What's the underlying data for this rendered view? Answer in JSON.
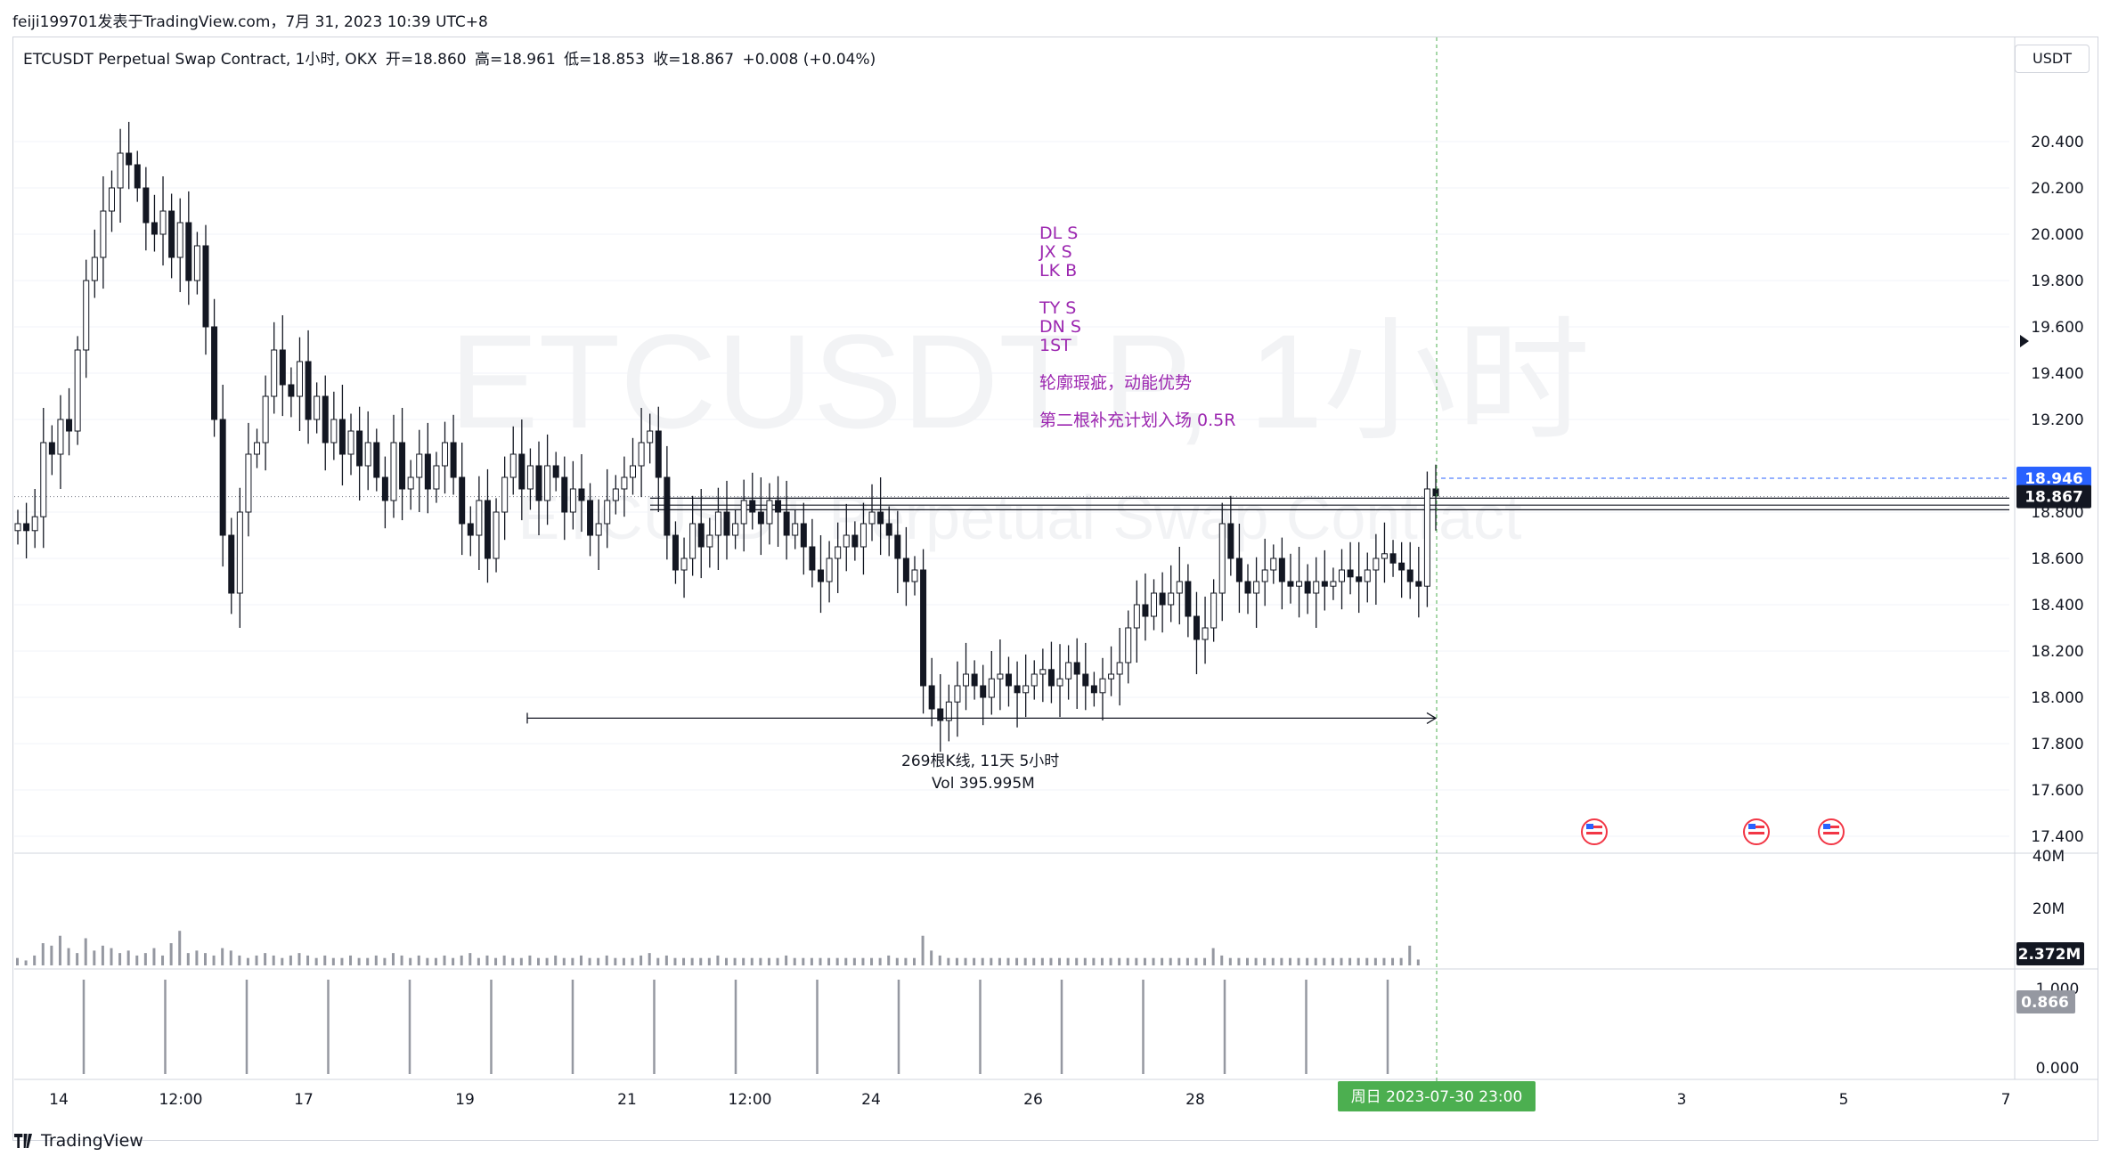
{
  "header": {
    "source_line": "feiji199701发表于TradingView.com，7月 31, 2023 10:39 UTC+8"
  },
  "legend": {
    "symbol": "ETCUSDT Perpetual Swap Contract, 1小时, OKX",
    "open": "开=18.860",
    "high": "高=18.961",
    "low": "低=18.853",
    "close": "收=18.867",
    "change": "+0.008 (+0.04%)"
  },
  "currency": "USDT",
  "watermark": {
    "big": "ETCUSDT.P, 1小时",
    "small": "ETCUSDT Perpetual Swap Contract"
  },
  "notes": [
    "DL S",
    "JX S",
    "LK B",
    "TY S",
    "DN S",
    "1ST",
    "轮廓瑕疵，动能优势",
    "第二根补充计划入场 0.5R"
  ],
  "measure": {
    "bars": "269根K线, 11天 5小时",
    "vol": "Vol 395.995M"
  },
  "crosshair_label": "周日 2023-07-30   23:00",
  "footer": {
    "brand": "TradingView"
  },
  "colors": {
    "up": "#131722",
    "down": "#131722",
    "note": "#9c27b0",
    "crosshair": "#4caf50",
    "last_price": "#131722",
    "alert_line": "#2962ff"
  },
  "chart_data": {
    "type": "candlestick",
    "price_axis": {
      "ticks": [
        20.4,
        20.2,
        20.0,
        19.8,
        19.6,
        19.4,
        19.2,
        18.8,
        18.6,
        18.4,
        18.2,
        18.0,
        17.8,
        17.6,
        17.4
      ],
      "tick_labels": [
        "20.400",
        "20.200",
        "20.000",
        "19.800",
        "19.600",
        "19.400",
        "19.200",
        "18.800",
        "18.600",
        "18.400",
        "18.200",
        "18.000",
        "17.800",
        "17.600",
        "17.400"
      ],
      "ylim": [
        17.35,
        20.55
      ]
    },
    "time_axis": {
      "labels": [
        "14",
        "12:00",
        "17",
        "19",
        "21",
        "12:00",
        "24",
        "26",
        "28",
        "3",
        "5",
        "7"
      ]
    },
    "price_labels": [
      {
        "label": "18.946",
        "value": 18.946,
        "color": "#2962ff"
      },
      {
        "label": "18.867",
        "value": 18.867,
        "color": "#131722"
      }
    ],
    "horizontal_levels": [
      18.86,
      18.83,
      18.81
    ],
    "measure_range": {
      "from_value": 17.91,
      "to_value": 17.91
    },
    "volume_axis": {
      "labels": [
        "40M",
        "20M"
      ],
      "last_label": "2.372M"
    },
    "indicator_axis": {
      "labels": [
        "1.000",
        "0.000"
      ],
      "last_label": "0.866"
    },
    "prices": [
      18.75,
      18.72,
      18.78,
      19.1,
      19.05,
      19.2,
      19.15,
      19.5,
      19.8,
      19.9,
      20.1,
      20.2,
      20.35,
      20.3,
      20.2,
      20.05,
      20.0,
      20.1,
      19.9,
      20.05,
      19.8,
      19.95,
      19.6,
      19.2,
      18.7,
      18.45,
      18.8,
      19.05,
      19.1,
      19.3,
      19.5,
      19.35,
      19.3,
      19.45,
      19.2,
      19.3,
      19.1,
      19.2,
      19.05,
      19.15,
      19.0,
      19.1,
      18.95,
      18.85,
      19.1,
      18.9,
      18.95,
      19.05,
      18.9,
      19.0,
      19.1,
      18.95,
      18.75,
      18.7,
      18.85,
      18.6,
      18.8,
      18.95,
      19.05,
      18.9,
      19.0,
      18.85,
      19.0,
      18.95,
      18.8,
      18.9,
      18.85,
      18.7,
      18.75,
      18.85,
      18.9,
      18.95,
      19.0,
      19.1,
      19.15,
      18.95,
      18.7,
      18.55,
      18.6,
      18.75,
      18.65,
      18.7,
      18.8,
      18.7,
      18.75,
      18.85,
      18.8,
      18.75,
      18.85,
      18.8,
      18.7,
      18.75,
      18.65,
      18.55,
      18.5,
      18.6,
      18.65,
      18.7,
      18.65,
      18.75,
      18.8,
      18.75,
      18.7,
      18.6,
      18.5,
      18.55,
      18.05,
      17.95,
      17.9,
      17.98,
      18.05,
      18.1,
      18.05,
      18.0,
      18.08,
      18.1,
      18.05,
      18.02,
      18.05,
      18.1,
      18.12,
      18.05,
      18.08,
      18.15,
      18.1,
      18.05,
      18.02,
      18.08,
      18.1,
      18.15,
      18.3,
      18.4,
      18.35,
      18.45,
      18.4,
      18.45,
      18.5,
      18.35,
      18.25,
      18.3,
      18.45,
      18.75,
      18.6,
      18.5,
      18.45,
      18.5,
      18.55,
      18.6,
      18.5,
      18.48,
      18.5,
      18.45,
      18.5,
      18.48,
      18.5,
      18.55,
      18.52,
      18.5,
      18.55,
      18.6,
      18.62,
      18.58,
      18.55,
      18.5,
      18.48,
      18.9,
      18.87
    ],
    "volumes": [
      3,
      2,
      4,
      9,
      8,
      12,
      7,
      5,
      11,
      6,
      8,
      7,
      5,
      6,
      4,
      5,
      7,
      4,
      9,
      14,
      5,
      6,
      5,
      4,
      7,
      6,
      4,
      3,
      4,
      5,
      4,
      3,
      4,
      5,
      4,
      3,
      4,
      3,
      3,
      4,
      3,
      3,
      4,
      3,
      5,
      4,
      3,
      4,
      3,
      3,
      4,
      3,
      4,
      5,
      3,
      4,
      3,
      4,
      3,
      3,
      4,
      3,
      3,
      4,
      3,
      3,
      4,
      3,
      3,
      4,
      3,
      3,
      3,
      4,
      5,
      3,
      4,
      3,
      3,
      3,
      3,
      3,
      4,
      3,
      3,
      3,
      3,
      3,
      3,
      3,
      4,
      3,
      3,
      3,
      3,
      3,
      3,
      3,
      3,
      3,
      3,
      3,
      4,
      3,
      3,
      3,
      12,
      6,
      4,
      3,
      3,
      3,
      3,
      3,
      3,
      3,
      3,
      3,
      3,
      3,
      3,
      3,
      3,
      3,
      3,
      3,
      3,
      3,
      3,
      3,
      3,
      3,
      3,
      3,
      3,
      3,
      3,
      3,
      3,
      3,
      7,
      4,
      3,
      3,
      3,
      3,
      3,
      3,
      3,
      3,
      3,
      3,
      3,
      3,
      3,
      3,
      3,
      3,
      3,
      3,
      3,
      3,
      3,
      8,
      2.372
    ],
    "indicator_spikes": 17
  }
}
